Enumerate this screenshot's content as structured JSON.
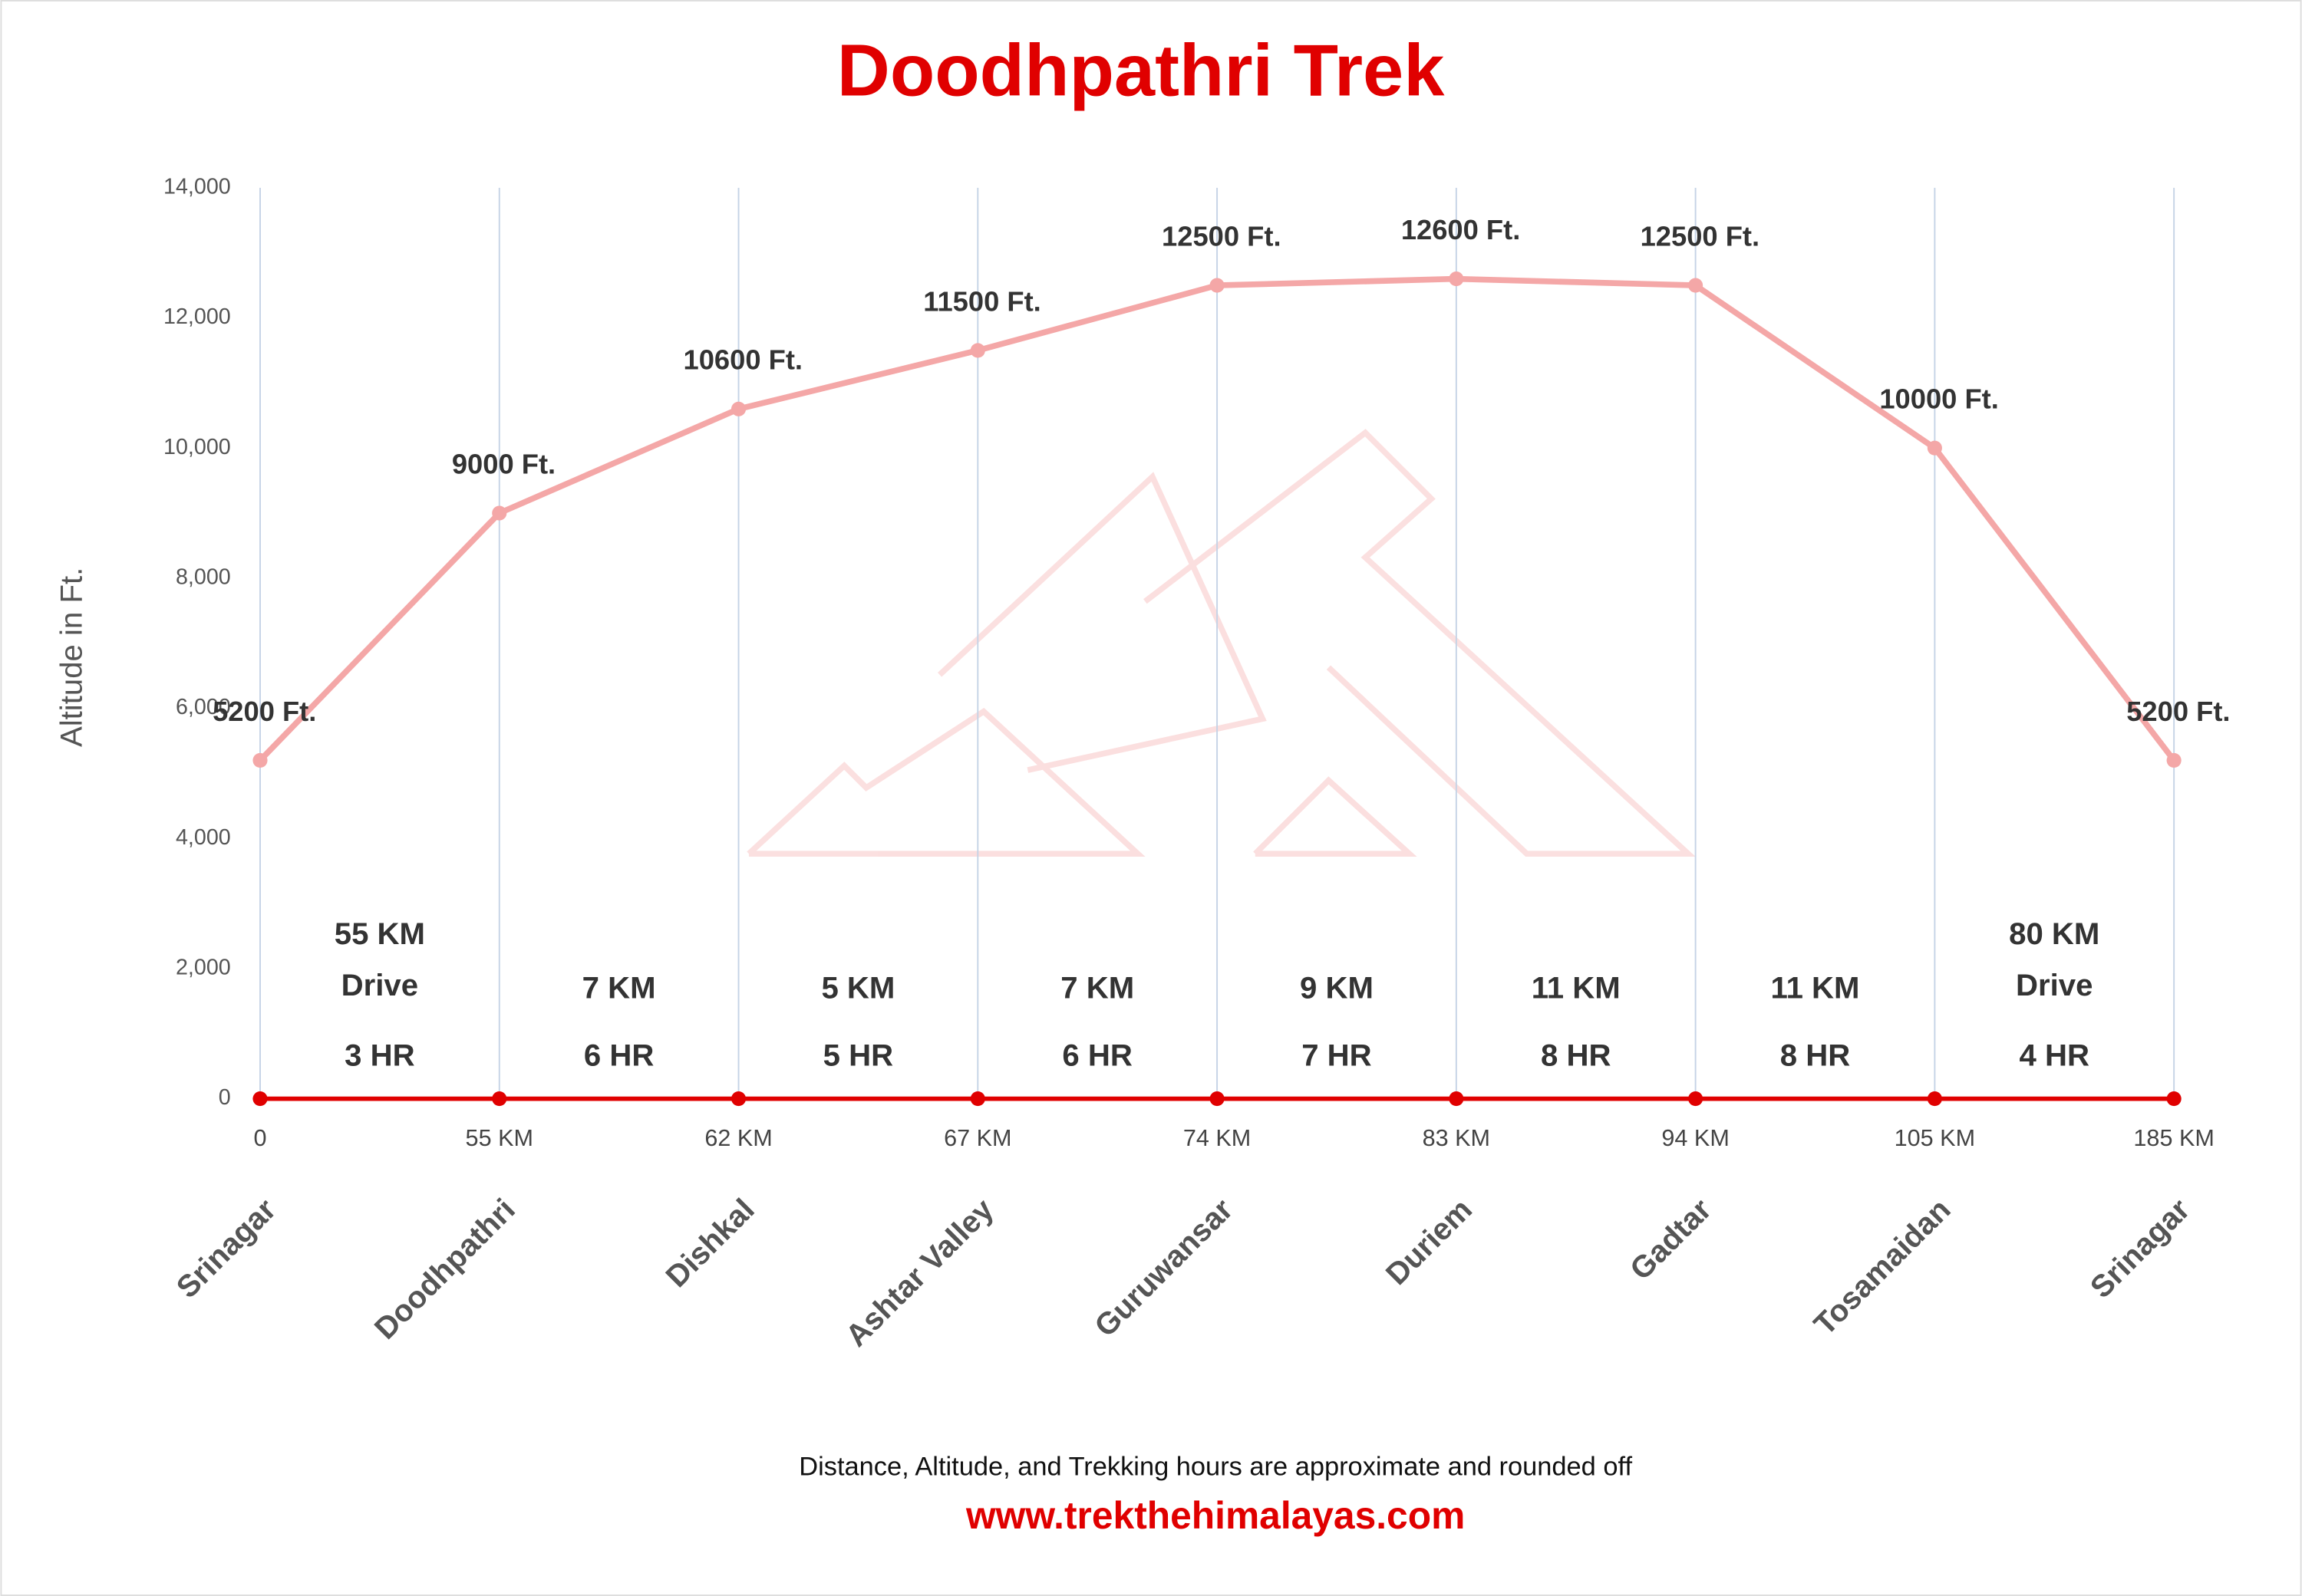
{
  "chart_data": {
    "type": "line",
    "title": "Doodhpathri Trek",
    "y_label": "Altitude in Ft.",
    "categories": [
      "Srinagar",
      "Doodhpathri",
      "Dishkal",
      "Ashtar Valley",
      "Guruwansar",
      "Duriem",
      "Gadtar",
      "Tosamaidan",
      "Srinagar"
    ],
    "distances": [
      "0",
      "55 KM",
      "62 KM",
      "67 KM",
      "74 KM",
      "83 KM",
      "94 KM",
      "105 KM",
      "185 KM"
    ],
    "series": [
      {
        "color": "#f4a7a7",
        "values": [
          5200,
          9000,
          10600,
          11500,
          12500,
          12600,
          12500,
          10000,
          5200
        ],
        "value_labels": [
          "5200 Ft.",
          "9000 Ft.",
          "10600 Ft.",
          "11500 Ft.",
          "12500 Ft.",
          "12600 Ft.",
          "12500 Ft.",
          "10000 Ft.",
          "5200 Ft."
        ]
      },
      {
        "color": "#e00000",
        "values": [
          0,
          0,
          0,
          0,
          0,
          0,
          0,
          0,
          0
        ]
      }
    ],
    "segments": [
      [
        "55  KM",
        "Drive",
        "3 HR"
      ],
      [
        "7 KM",
        "6 HR"
      ],
      [
        "5 KM",
        "5 HR"
      ],
      [
        "7 KM",
        "6 HR"
      ],
      [
        "9 KM",
        "7 HR"
      ],
      [
        "11 KM",
        "8 HR"
      ],
      [
        "11 KM",
        "8 HR"
      ],
      [
        "80  KM",
        "Drive",
        "4 HR"
      ]
    ],
    "ylim": [
      0,
      14000
    ],
    "yticks": [
      0,
      {
        "value": 2000,
        "label": "2,000"
      },
      {
        "value": 4000,
        "label": "4,000"
      },
      {
        "value": 6000,
        "label": "6,000"
      },
      {
        "value": 8000,
        "label": "8,000"
      },
      {
        "value": 10000,
        "label": "10,000"
      },
      {
        "value": 12000,
        "label": "12,000"
      },
      {
        "value": 14000,
        "label": "14,000"
      }
    ],
    "grid": true,
    "note": "Distance, Altitude,  and Trekking hours are approximate and rounded  off",
    "website": "www.trekthehimalayas.com"
  }
}
